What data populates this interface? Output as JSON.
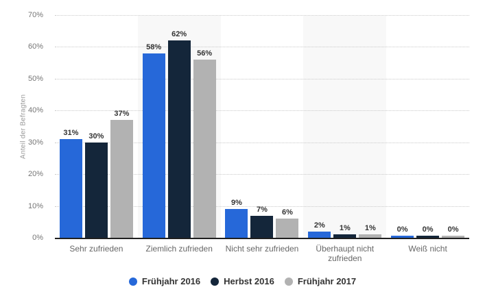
{
  "chart_data": {
    "type": "bar",
    "title": "",
    "xlabel": "",
    "ylabel": "Anteil der Befragten",
    "categories": [
      "Sehr zufrieden",
      "Ziemlich zufrieden",
      "Nicht sehr zufrieden",
      "Überhaupt nicht zufrieden",
      "Weiß nicht"
    ],
    "series": [
      {
        "name": "Frühjahr 2016",
        "color": "#2668d9",
        "values": [
          31,
          58,
          9,
          2,
          0
        ]
      },
      {
        "name": "Herbst 2016",
        "color": "#14263a",
        "values": [
          30,
          62,
          7,
          1,
          0
        ]
      },
      {
        "name": "Frühjahr 2017",
        "color": "#b2b2b2",
        "values": [
          37,
          56,
          6,
          1,
          0
        ]
      }
    ],
    "value_suffix": "%",
    "ylim": [
      0,
      70
    ],
    "y_tick_step": 10,
    "y_ticks": [
      "0%",
      "10%",
      "20%",
      "30%",
      "40%",
      "50%",
      "60%",
      "70%"
    ],
    "grid": "horizontal-dotted",
    "legend_position": "bottom",
    "shaded_category_indexes": [
      1,
      3
    ]
  },
  "style_colors": {
    "background": "#ffffff",
    "band": "#f8f8f8",
    "gridline": "#c9c9c9",
    "axis_line": "#1f1f1f",
    "tick_text": "#757575",
    "category_text": "#666666",
    "value_text": "#333333",
    "legend_text": "#333333",
    "y_title_text": "#999999"
  }
}
